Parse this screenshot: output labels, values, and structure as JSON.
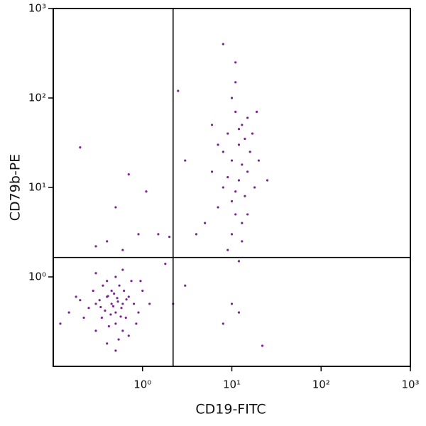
{
  "chart_data": {
    "type": "scatter",
    "xlabel": "CD19-FITC",
    "ylabel": "CD79b-PE",
    "xscale": "log",
    "yscale": "log",
    "xlim": [
      0.1,
      1000
    ],
    "ylim": [
      0.1,
      1000
    ],
    "xticks": [
      {
        "value": 1,
        "label": "10⁰"
      },
      {
        "value": 10,
        "label": "10¹"
      },
      {
        "value": 100,
        "label": "10²"
      },
      {
        "value": 1000,
        "label": "10³"
      }
    ],
    "yticks": [
      {
        "value": 1,
        "label": "10⁰"
      },
      {
        "value": 10,
        "label": "10¹"
      },
      {
        "value": 100,
        "label": "10²"
      },
      {
        "value": 1000,
        "label": "10³"
      }
    ],
    "quadrant_gates": {
      "x": 2.2,
      "y": 1.65
    },
    "color": "#7a2590",
    "x": [
      0.3,
      0.4,
      0.5,
      0.45,
      0.35,
      0.6,
      0.55,
      0.25,
      0.7,
      0.5,
      0.4,
      0.65,
      0.3,
      0.8,
      0.2,
      0.45,
      0.38,
      0.52,
      0.6,
      0.75,
      0.28,
      0.42,
      0.9,
      0.33,
      0.58,
      0.48,
      0.36,
      0.62,
      0.44,
      0.54,
      0.22,
      0.18,
      1.0,
      0.85,
      0.7,
      0.4,
      0.5,
      0.3,
      0.6,
      0.15,
      0.12,
      1.2,
      0.95,
      0.47,
      0.53,
      0.41,
      0.57,
      0.34,
      0.66,
      0.5,
      10,
      12,
      8,
      15,
      11,
      13,
      9,
      14,
      10,
      12,
      7,
      16,
      11,
      9,
      13,
      15,
      10,
      8,
      12,
      18,
      6,
      14,
      11,
      20,
      5,
      9,
      13,
      10,
      12,
      17,
      7,
      11,
      8,
      25,
      4,
      13,
      10,
      12,
      8,
      22,
      11,
      15,
      6,
      19,
      0.2,
      0.7,
      1.1,
      0.5,
      0.9,
      0.4,
      0.6,
      1.5,
      2.0,
      0.3,
      2.5,
      3,
      1.8,
      3,
      2.2
    ],
    "y": [
      0.5,
      0.6,
      0.4,
      0.7,
      0.35,
      0.5,
      0.8,
      0.45,
      0.6,
      0.3,
      0.9,
      0.35,
      0.25,
      0.5,
      0.55,
      0.5,
      0.42,
      0.58,
      0.25,
      0.9,
      0.7,
      0.28,
      0.4,
      0.55,
      0.45,
      0.65,
      0.8,
      0.7,
      0.38,
      0.2,
      0.35,
      0.6,
      0.7,
      0.3,
      0.22,
      0.18,
      1.0,
      1.1,
      1.2,
      0.4,
      0.3,
      0.5,
      0.9,
      0.47,
      0.53,
      0.61,
      0.36,
      0.46,
      0.56,
      0.15,
      20,
      30,
      10,
      15,
      5,
      50,
      40,
      8,
      3,
      12,
      6,
      25,
      70,
      2,
      4,
      60,
      100,
      25,
      1.5,
      10,
      15,
      35,
      9,
      20,
      4,
      13,
      18,
      7,
      45,
      40,
      30,
      250,
      400,
      12,
      3,
      2.5,
      0.5,
      0.4,
      0.3,
      0.17,
      150,
      5,
      50,
      70,
      28,
      14,
      9,
      6,
      3,
      2.5,
      2,
      3,
      2.8,
      2.2,
      120,
      20,
      1.4,
      0.8,
      0.5
    ]
  }
}
